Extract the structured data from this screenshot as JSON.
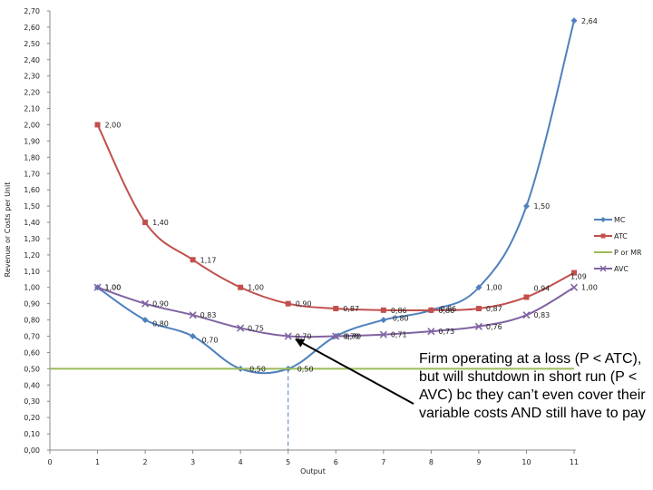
{
  "chart_data": {
    "type": "line",
    "ylabel": "Revenue or Costs per Unit",
    "xlabel": "Output",
    "xlim": [
      0,
      11
    ],
    "ylim": [
      0,
      2.7
    ],
    "x_ticks": [
      "0",
      "1",
      "2",
      "3",
      "4",
      "5",
      "6",
      "7",
      "8",
      "9",
      "10",
      "11"
    ],
    "y_ticks": [
      "0,00",
      "0,10",
      "0,20",
      "0,30",
      "0,40",
      "0,50",
      "0,60",
      "0,70",
      "0,80",
      "0,90",
      "1,00",
      "1,10",
      "1,20",
      "1,30",
      "1,40",
      "1,50",
      "1,60",
      "1,70",
      "1,80",
      "1,90",
      "2,00",
      "2,10",
      "2,20",
      "2,30",
      "2,40",
      "2,50",
      "2,60",
      "2,70"
    ],
    "series": [
      {
        "name": "MC",
        "color": "#4f81bd",
        "marker": "diamond",
        "x": [
          1,
          2,
          3,
          4,
          5,
          6,
          7,
          8,
          9,
          10,
          11
        ],
        "y": [
          1.0,
          0.8,
          0.7,
          0.5,
          0.5,
          0.7,
          0.8,
          0.86,
          1.0,
          1.5,
          2.64
        ],
        "labels": [
          "1,00",
          "0,80",
          "0,70",
          "0,50",
          "0,50",
          "0,70",
          "0,80",
          "0,86",
          "1,00",
          "1,50",
          "2,64"
        ]
      },
      {
        "name": "ATC",
        "color": "#c0504d",
        "marker": "square",
        "x": [
          1,
          2,
          3,
          4,
          5,
          6,
          7,
          8,
          9,
          10,
          11
        ],
        "y": [
          2.0,
          1.4,
          1.17,
          1.0,
          0.9,
          0.87,
          0.86,
          0.86,
          0.87,
          0.94,
          1.09
        ],
        "labels": [
          "2,00",
          "1,40",
          "1,17",
          "1,00",
          "0,90",
          "0,87",
          "0,86",
          "0,86",
          "0,87",
          "0,94",
          "1,09"
        ]
      },
      {
        "name": "P or MR",
        "color": "#9bbb59",
        "marker": "none",
        "x": [
          0,
          11
        ],
        "y": [
          0.5,
          0.5
        ],
        "labels": []
      },
      {
        "name": "AVC",
        "color": "#8064a2",
        "marker": "x",
        "x": [
          1,
          2,
          3,
          4,
          5,
          6,
          7,
          8,
          9,
          10,
          11
        ],
        "y": [
          1.0,
          0.9,
          0.83,
          0.75,
          0.7,
          0.7,
          0.71,
          0.73,
          0.76,
          0.83,
          1.0
        ],
        "labels": [
          "1,00",
          "0,90",
          "0,83",
          "0,75",
          "0,70",
          "0,70",
          "0,71",
          "0,73",
          "0,76",
          "0,83",
          "1,00"
        ]
      }
    ],
    "reference_line": {
      "x": 5,
      "style": "dashed",
      "color": "#4f81bd"
    },
    "legend": {
      "placement": "right",
      "entries": [
        "MC",
        "ATC",
        "P or MR",
        "AVC"
      ]
    },
    "annotation": {
      "text": "Firm operating at a loss (P < ATC), but will shutdown in short run (P < AVC) bc they can’t even cover their variable costs AND still have to pay",
      "points_to": {
        "x": 5,
        "y": 0.7
      }
    },
    "grid": false
  }
}
